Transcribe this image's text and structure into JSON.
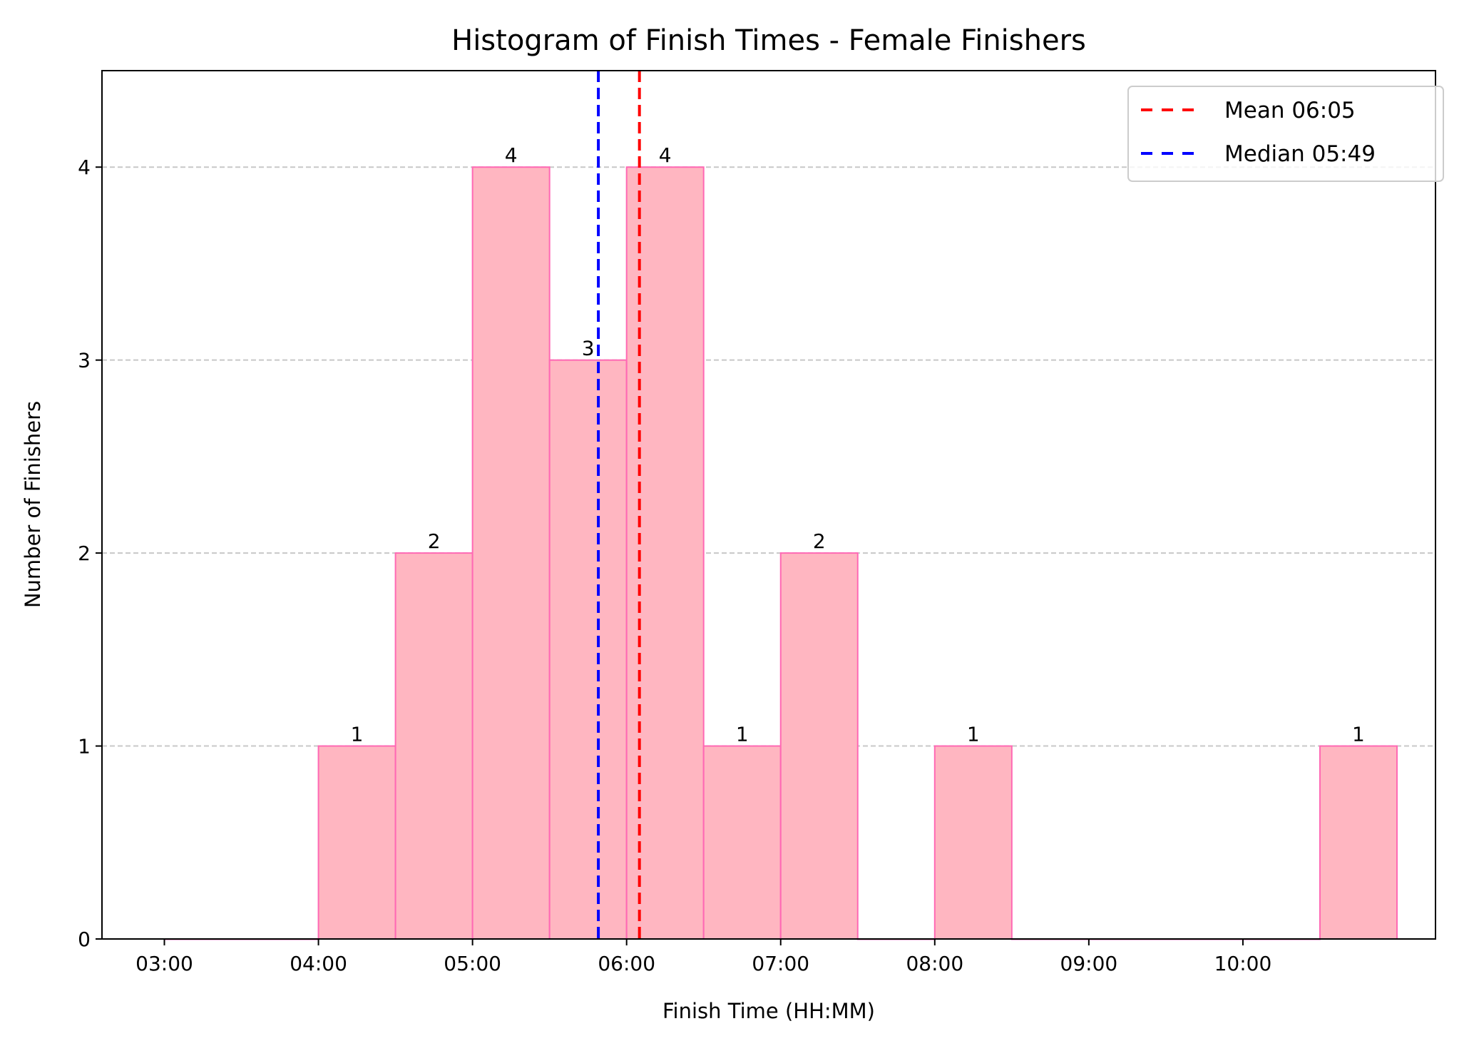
{
  "chart_data": {
    "type": "bar",
    "title": "Histogram of Finish Times - Female Finishers",
    "xlabel": "Finish Time (HH:MM)",
    "ylabel": "Number of Finishers",
    "xlim": [
      2.595,
      11.25
    ],
    "ylim": [
      0,
      4.5
    ],
    "bin_width_hours": 0.5,
    "bin_starts_hours": [
      3,
      3.5,
      4,
      4.5,
      5,
      5.5,
      6,
      6.5,
      7,
      7.5,
      8,
      8.5,
      9,
      9.5,
      10,
      10.5
    ],
    "counts": [
      0,
      0,
      1,
      2,
      4,
      3,
      4,
      1,
      2,
      0,
      1,
      0,
      0,
      0,
      0,
      1
    ],
    "x_ticks": [
      {
        "value": 3,
        "label": "03:00"
      },
      {
        "value": 4,
        "label": "04:00"
      },
      {
        "value": 5,
        "label": "05:00"
      },
      {
        "value": 6,
        "label": "06:00"
      },
      {
        "value": 7,
        "label": "07:00"
      },
      {
        "value": 8,
        "label": "08:00"
      },
      {
        "value": 9,
        "label": "09:00"
      },
      {
        "value": 10,
        "label": "10:00"
      }
    ],
    "y_ticks": [
      {
        "value": 0,
        "label": "0"
      },
      {
        "value": 1,
        "label": "1"
      },
      {
        "value": 2,
        "label": "2"
      },
      {
        "value": 3,
        "label": "3"
      },
      {
        "value": 4,
        "label": "4"
      }
    ],
    "grid": "y dashed",
    "lines": [
      {
        "name": "Mean 06:05",
        "value": 6.0833,
        "color": "#ff0000"
      },
      {
        "name": "Median 05:49",
        "value": 5.8167,
        "color": "#0000ff"
      }
    ],
    "legend_position": "top-right",
    "bar_fill": "#ffb6c1",
    "bar_edge": "#ff69b4"
  }
}
